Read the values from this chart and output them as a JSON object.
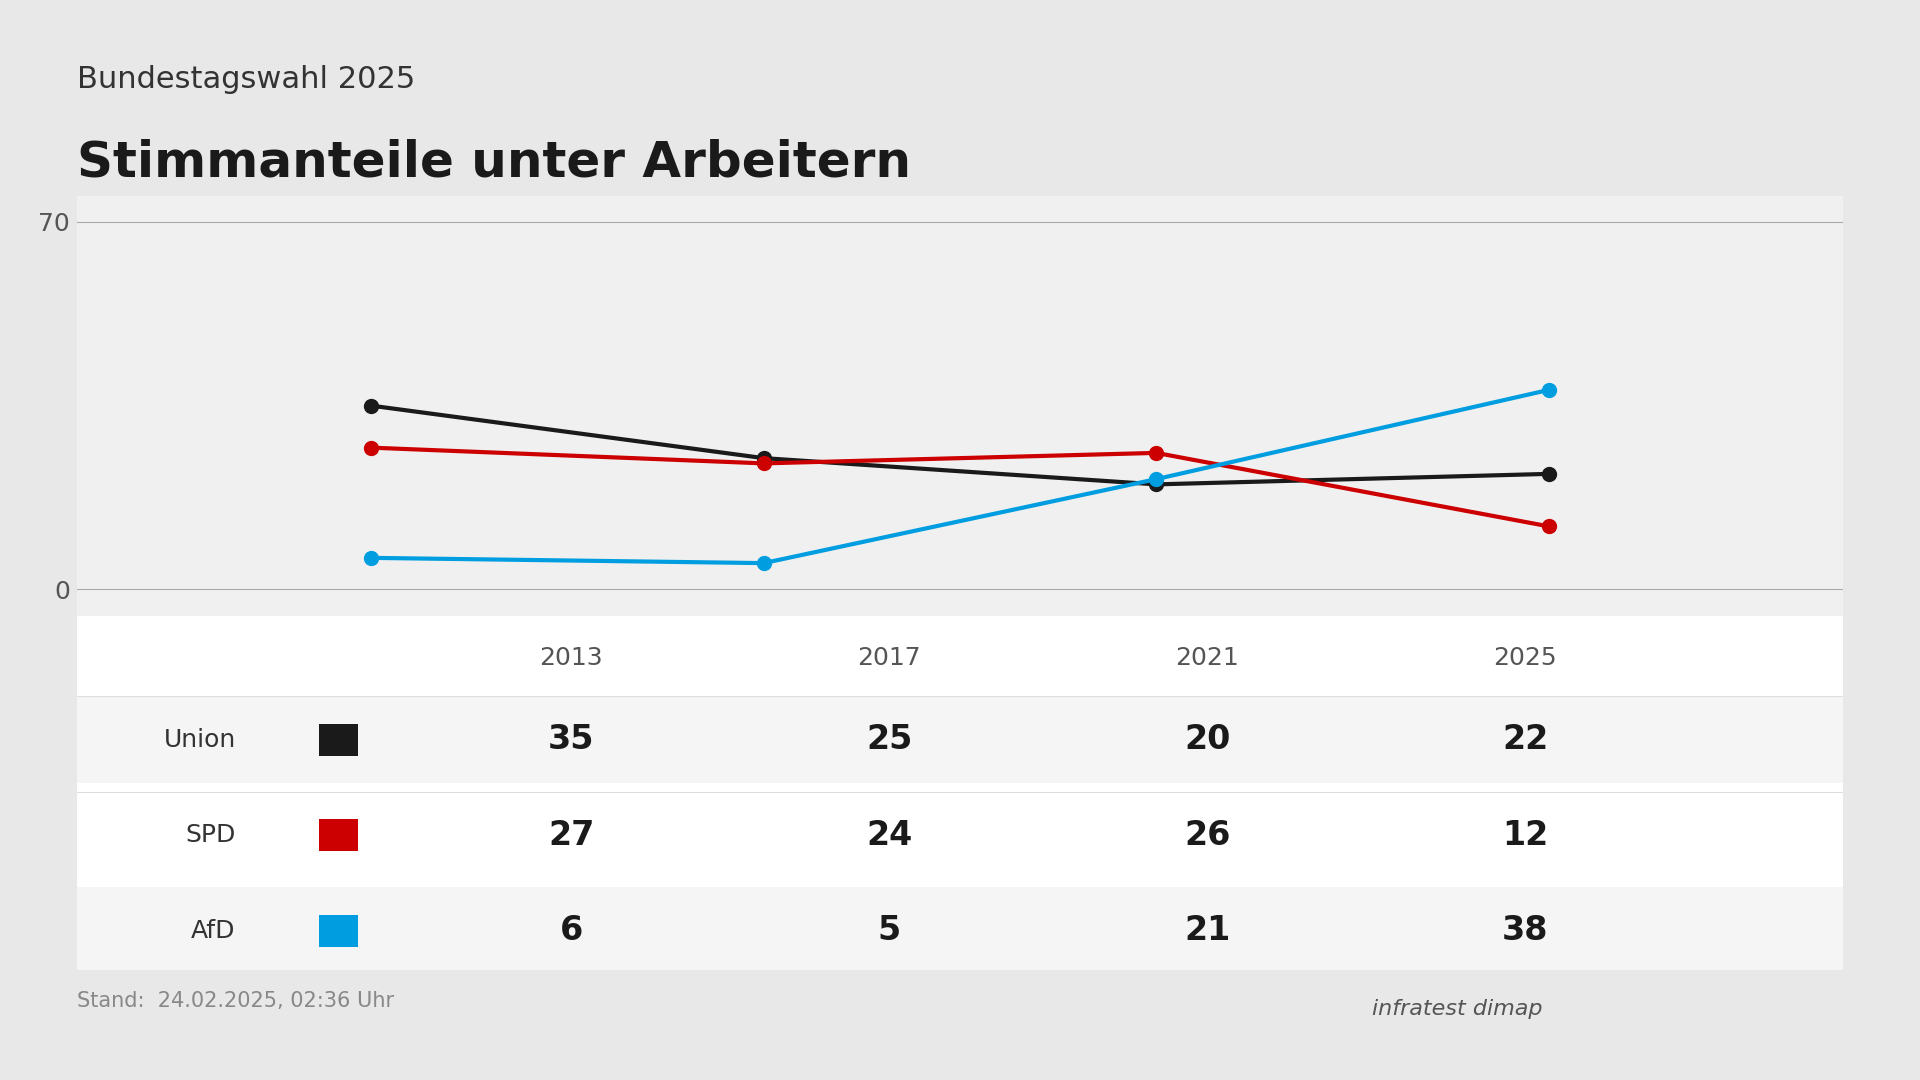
{
  "title_small": "Bundestagswahl 2025",
  "title_large": "Stimmanteile unter Arbeitern",
  "years": [
    2013,
    2017,
    2021,
    2025
  ],
  "series": [
    {
      "name": "Union",
      "color": "#1a1a1a",
      "values": [
        35,
        25,
        20,
        22
      ]
    },
    {
      "name": "SPD",
      "color": "#cc0000",
      "values": [
        27,
        24,
        26,
        12
      ]
    },
    {
      "name": "AfD",
      "color": "#009ee0",
      "values": [
        6,
        5,
        21,
        38
      ]
    }
  ],
  "y_tick": 70,
  "y_min": -5,
  "y_max": 75,
  "background_outer": "#e8e8e8",
  "background_chart": "#f0f0f0",
  "background_table": "#ffffff",
  "background_table_alt": "#f5f5f5",
  "stand_text": "Stand:  24.02.2025, 02:36 Uhr",
  "line_width": 3.0,
  "marker_size": 10
}
